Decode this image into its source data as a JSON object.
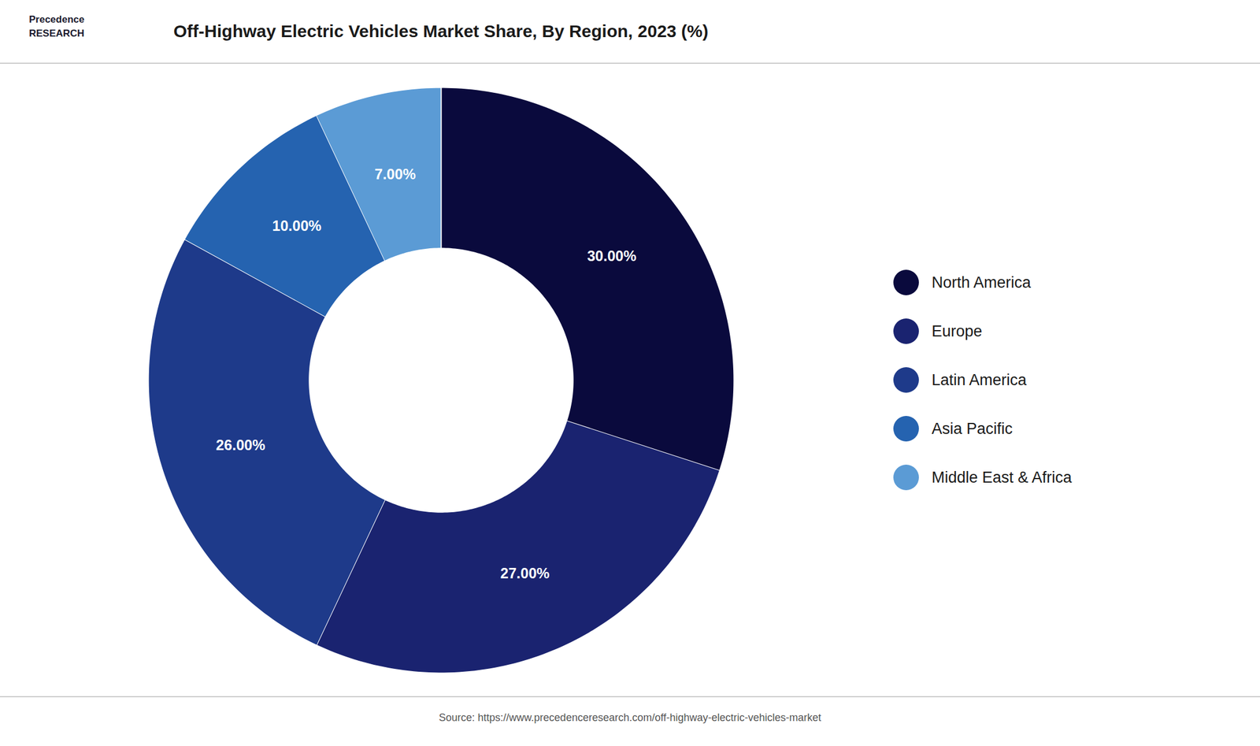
{
  "chart_data": {
    "type": "donut",
    "title": "Off-Highway Electric Vehicles Market Share, By Region, 2023 (%)",
    "categories": [
      "North America",
      "Europe",
      "Latin America",
      "Asia Pacific",
      "Middle East & Africa"
    ],
    "values": [
      30.0,
      27.0,
      26.0,
      10.0,
      7.0
    ],
    "value_labels": [
      "30.00%",
      "27.00%",
      "26.00%",
      "10.00%",
      "7.00%"
    ],
    "colors": [
      "#0a0a3d",
      "#1a2370",
      "#1e3a8a",
      "#2563b0",
      "#5b9bd5"
    ],
    "data_labels": true,
    "legend": "right",
    "annotations": [
      "Precedence",
      "RESEARCH"
    ],
    "caption": "Source: https://www.precedenceresearch.com/off-highway-electric-vehicles-market"
  }
}
